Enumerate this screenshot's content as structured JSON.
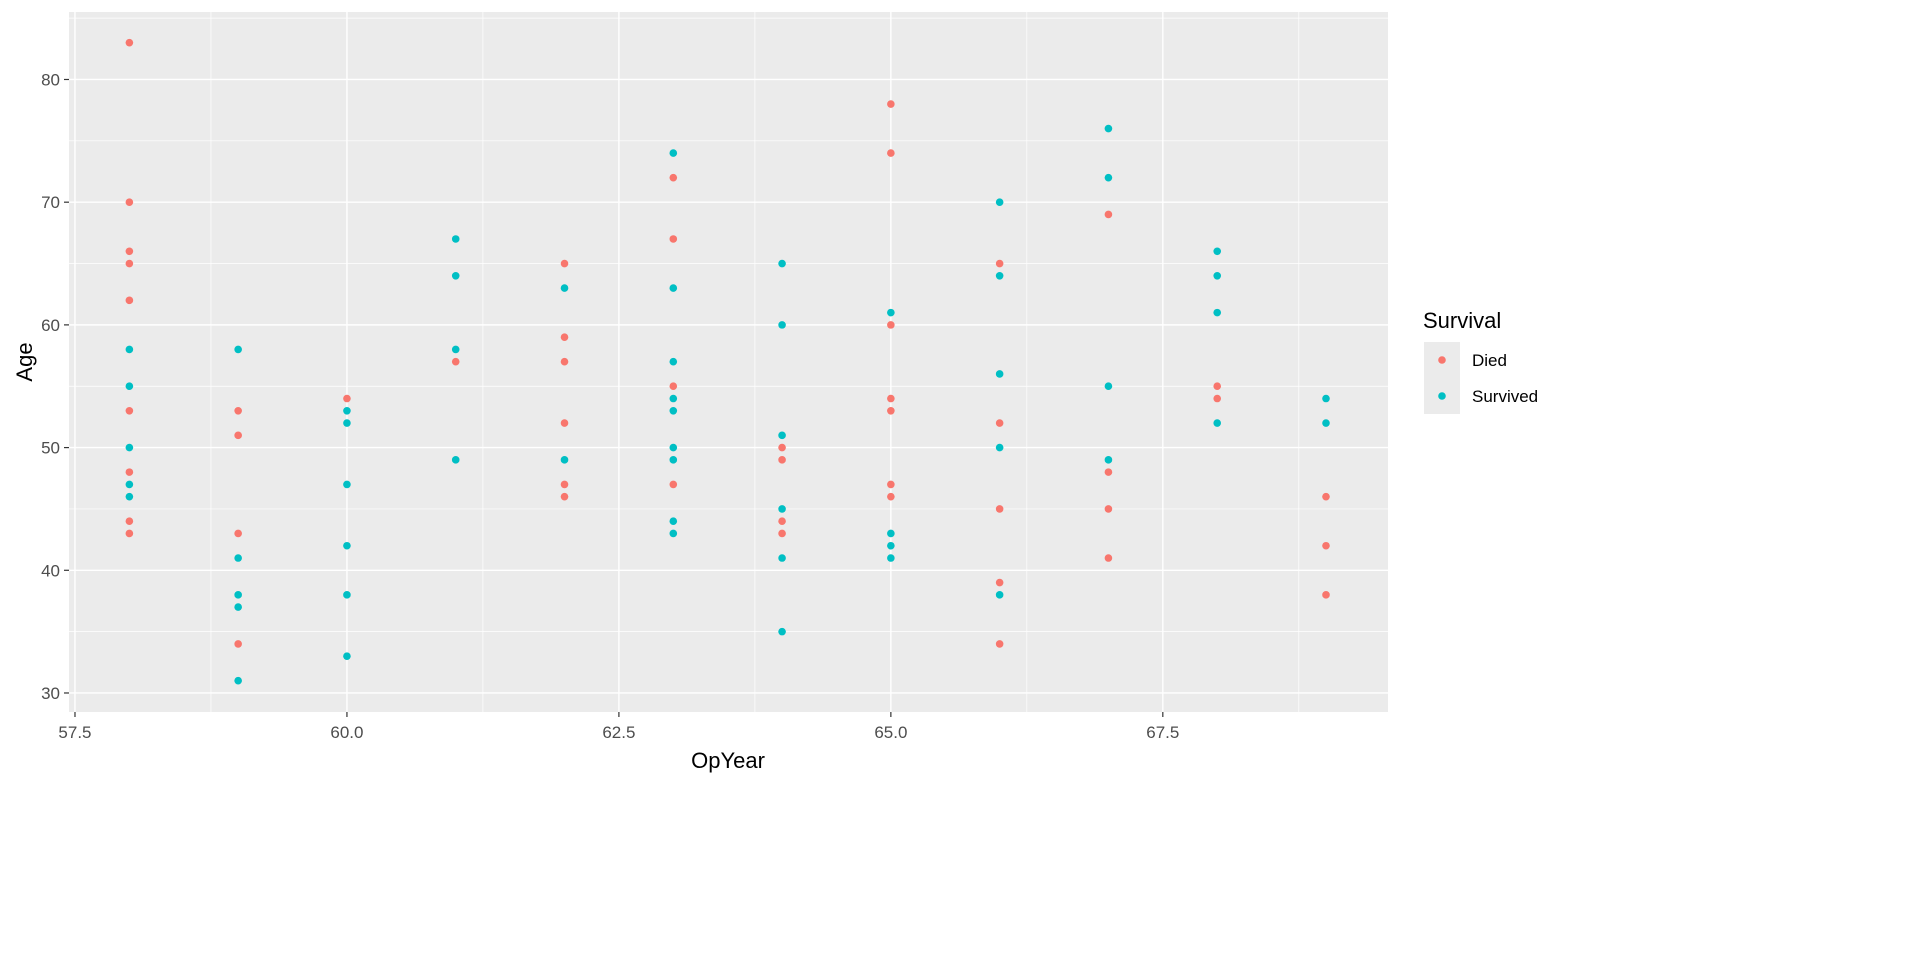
{
  "chart_data": {
    "type": "scatter",
    "title": "",
    "xlabel": "OpYear",
    "ylabel": "Age",
    "xlim": [
      57.445,
      69.57
    ],
    "ylim": [
      28.45,
      85.5
    ],
    "xticks": [
      57.5,
      60.0,
      62.5,
      65.0,
      67.5
    ],
    "xtick_labels": [
      "57.5",
      "60.0",
      "62.5",
      "65.0",
      "67.5"
    ],
    "yticks": [
      30,
      40,
      50,
      60,
      70,
      80
    ],
    "ytick_labels": [
      "30",
      "40",
      "50",
      "60",
      "70",
      "80"
    ],
    "grid": true,
    "legend": {
      "title": "Survival",
      "placement": "right"
    },
    "series": [
      {
        "name": "Died",
        "color": "#F8766D",
        "points": [
          [
            58,
            83
          ],
          [
            58,
            70
          ],
          [
            58,
            66
          ],
          [
            58,
            65
          ],
          [
            58,
            62
          ],
          [
            58,
            53
          ],
          [
            58,
            48
          ],
          [
            58,
            44
          ],
          [
            58,
            43
          ],
          [
            59,
            53
          ],
          [
            59,
            51
          ],
          [
            59,
            43
          ],
          [
            59,
            34
          ],
          [
            60,
            54
          ],
          [
            61,
            57
          ],
          [
            62,
            65
          ],
          [
            62,
            59
          ],
          [
            62,
            57
          ],
          [
            62,
            52
          ],
          [
            62,
            47
          ],
          [
            62,
            46
          ],
          [
            63,
            72
          ],
          [
            63,
            67
          ],
          [
            63,
            55
          ],
          [
            63,
            47
          ],
          [
            64,
            50
          ],
          [
            64,
            49
          ],
          [
            64,
            44
          ],
          [
            64,
            43
          ],
          [
            65,
            78
          ],
          [
            65,
            74
          ],
          [
            65,
            60
          ],
          [
            65,
            54
          ],
          [
            65,
            53
          ],
          [
            65,
            47
          ],
          [
            65,
            46
          ],
          [
            66,
            65
          ],
          [
            66,
            52
          ],
          [
            66,
            45
          ],
          [
            66,
            39
          ],
          [
            66,
            34
          ],
          [
            67,
            69
          ],
          [
            67,
            48
          ],
          [
            67,
            45
          ],
          [
            67,
            41
          ],
          [
            68,
            55
          ],
          [
            68,
            54
          ],
          [
            69,
            46
          ],
          [
            69,
            42
          ],
          [
            69,
            38
          ]
        ]
      },
      {
        "name": "Survived",
        "color": "#00BFC4",
        "points": [
          [
            58,
            58
          ],
          [
            58,
            55
          ],
          [
            58,
            50
          ],
          [
            58,
            47
          ],
          [
            58,
            46
          ],
          [
            59,
            58
          ],
          [
            59,
            41
          ],
          [
            59,
            38
          ],
          [
            59,
            37
          ],
          [
            59,
            31
          ],
          [
            60,
            53
          ],
          [
            60,
            52
          ],
          [
            60,
            47
          ],
          [
            60,
            42
          ],
          [
            60,
            38
          ],
          [
            60,
            33
          ],
          [
            61,
            67
          ],
          [
            61,
            64
          ],
          [
            61,
            58
          ],
          [
            61,
            49
          ],
          [
            62,
            63
          ],
          [
            62,
            49
          ],
          [
            63,
            74
          ],
          [
            63,
            63
          ],
          [
            63,
            57
          ],
          [
            63,
            54
          ],
          [
            63,
            53
          ],
          [
            63,
            50
          ],
          [
            63,
            49
          ],
          [
            63,
            44
          ],
          [
            63,
            43
          ],
          [
            64,
            65
          ],
          [
            64,
            60
          ],
          [
            64,
            51
          ],
          [
            64,
            45
          ],
          [
            64,
            41
          ],
          [
            64,
            35
          ],
          [
            65,
            61
          ],
          [
            65,
            43
          ],
          [
            65,
            42
          ],
          [
            65,
            41
          ],
          [
            66,
            70
          ],
          [
            66,
            64
          ],
          [
            66,
            56
          ],
          [
            66,
            50
          ],
          [
            66,
            38
          ],
          [
            67,
            76
          ],
          [
            67,
            72
          ],
          [
            67,
            55
          ],
          [
            67,
            49
          ],
          [
            68,
            66
          ],
          [
            68,
            64
          ],
          [
            68,
            61
          ],
          [
            68,
            52
          ],
          [
            69,
            54
          ],
          [
            69,
            52
          ]
        ]
      }
    ]
  }
}
